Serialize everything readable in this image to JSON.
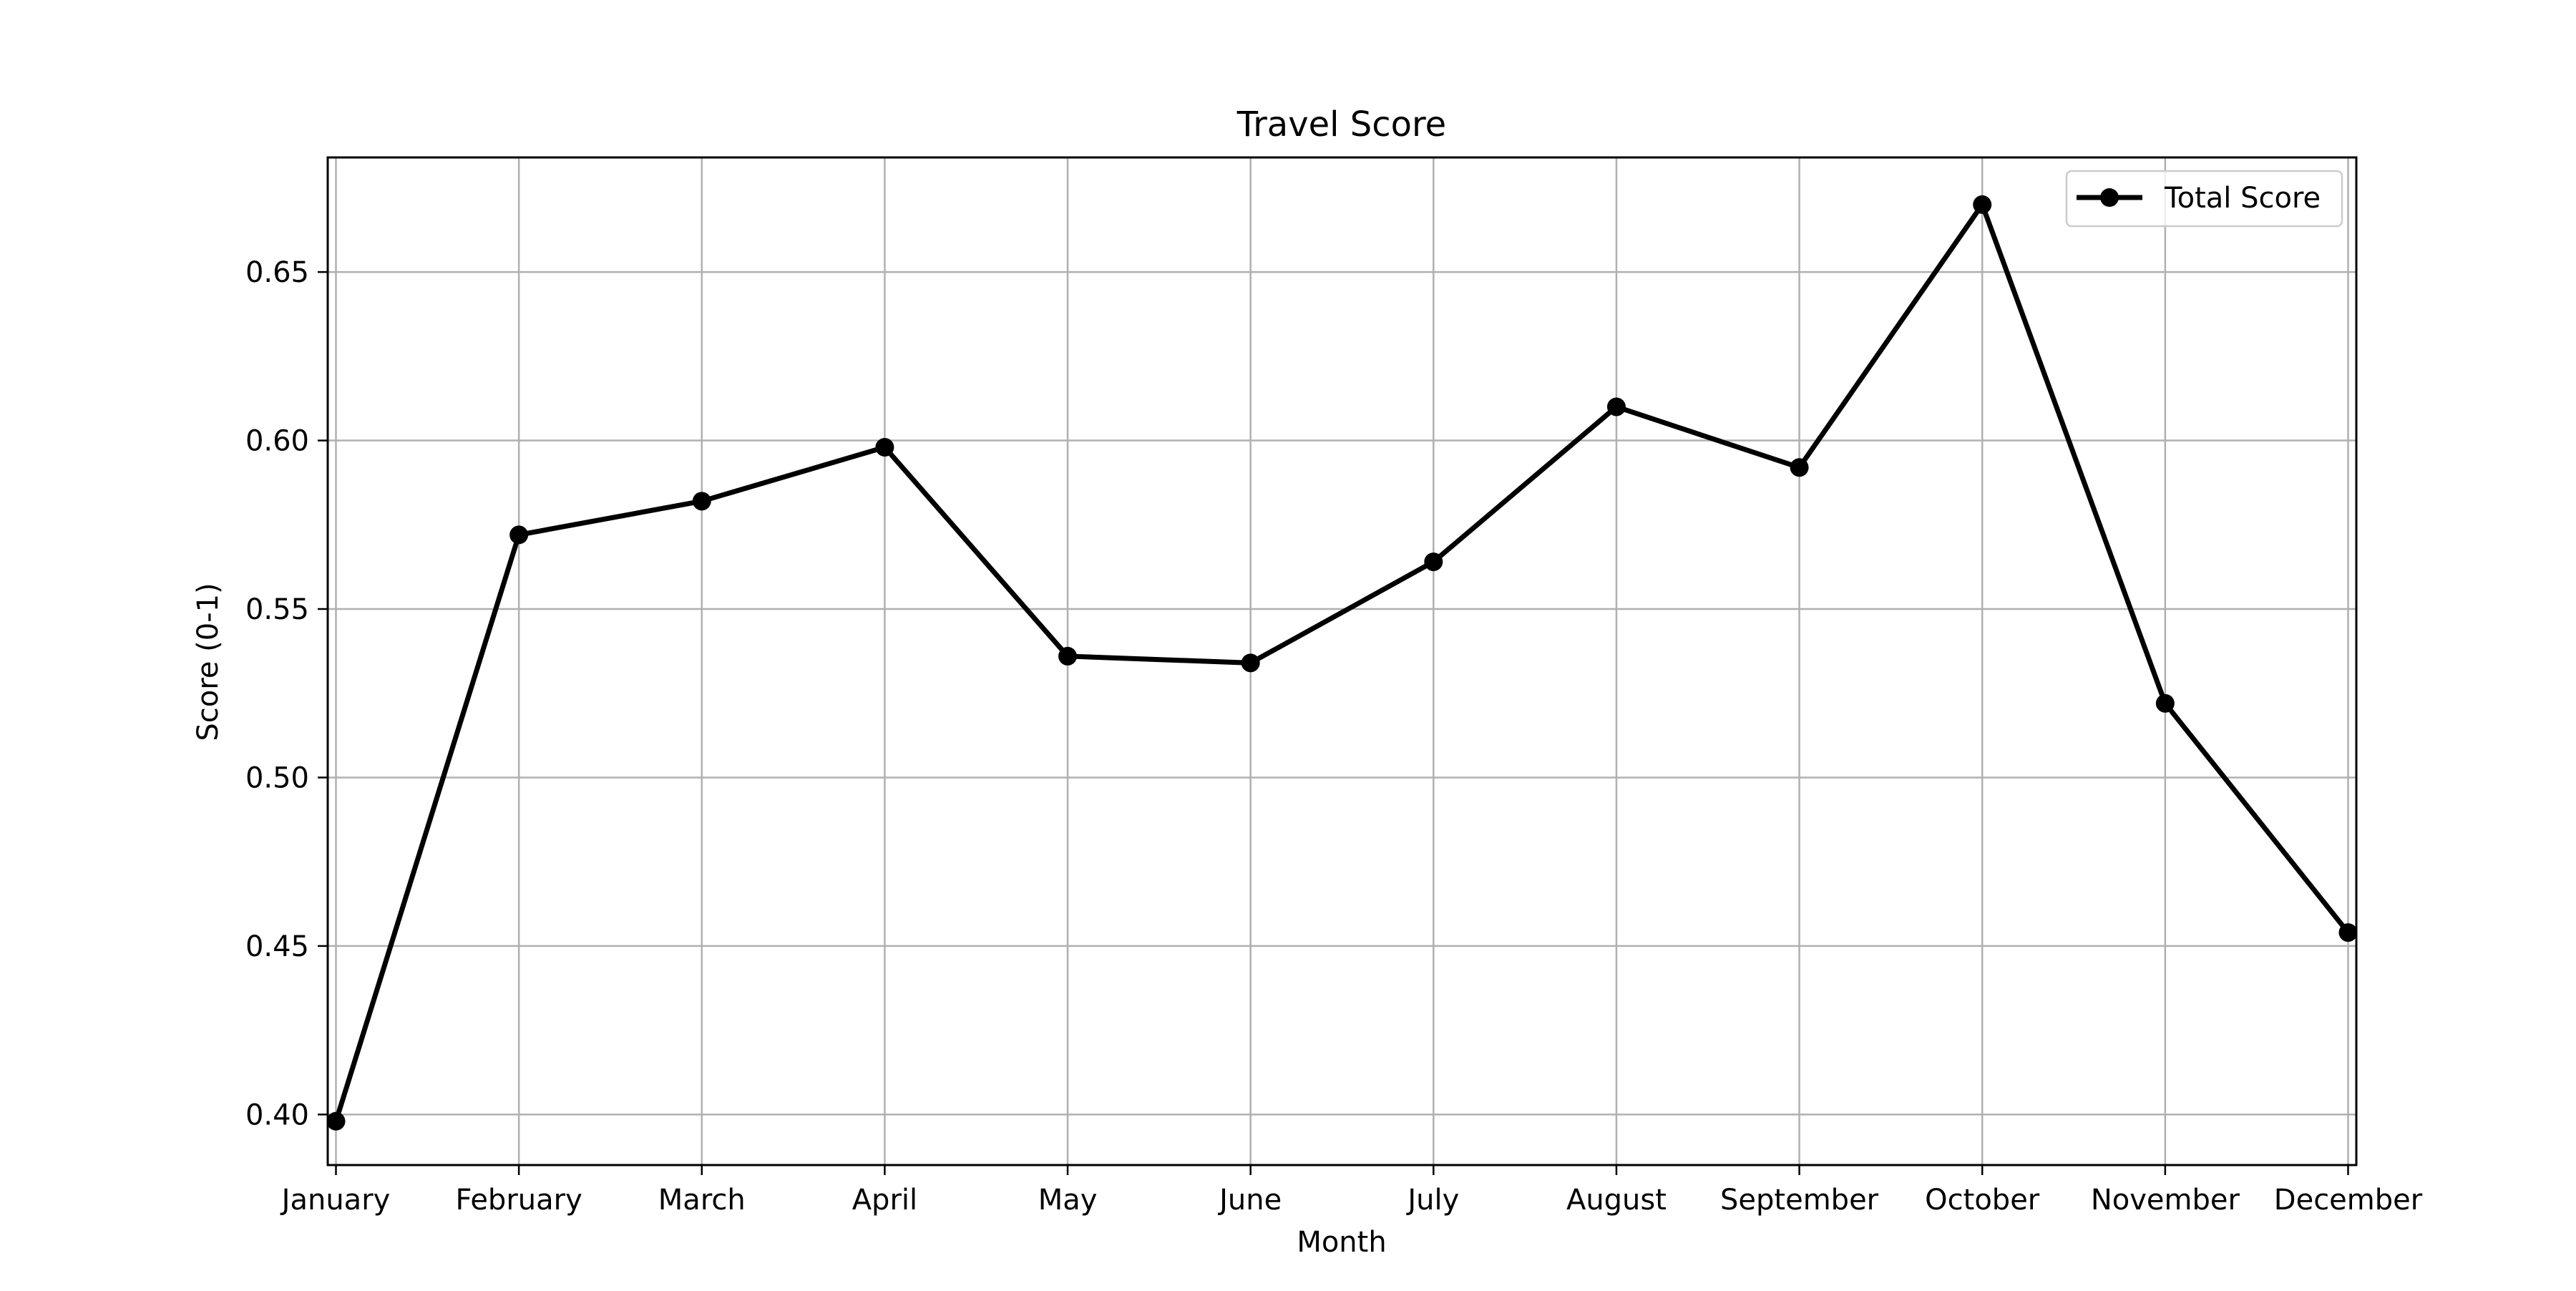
{
  "chart_data": {
    "type": "line",
    "title": "Travel Score",
    "xlabel": "Month",
    "ylabel": "Score (0-1)",
    "categories": [
      "January",
      "February",
      "March",
      "April",
      "May",
      "June",
      "July",
      "August",
      "September",
      "October",
      "November",
      "December"
    ],
    "series": [
      {
        "name": "Total Score",
        "values": [
          0.398,
          0.572,
          0.582,
          0.598,
          0.536,
          0.534,
          0.564,
          0.61,
          0.592,
          0.67,
          0.522,
          0.454
        ],
        "color": "#000000",
        "marker": "circle"
      }
    ],
    "ylim": [
      0.385,
      0.684
    ],
    "yticks": [
      0.4,
      0.45,
      0.5,
      0.55,
      0.6,
      0.65
    ],
    "ytick_labels": [
      "0.40",
      "0.45",
      "0.50",
      "0.55",
      "0.60",
      "0.65"
    ],
    "grid": true,
    "legend_position": "top-right",
    "colors": {
      "line": "#000000",
      "grid": "#b0b0b0",
      "axes": "#000000",
      "background": "#ffffff"
    }
  }
}
